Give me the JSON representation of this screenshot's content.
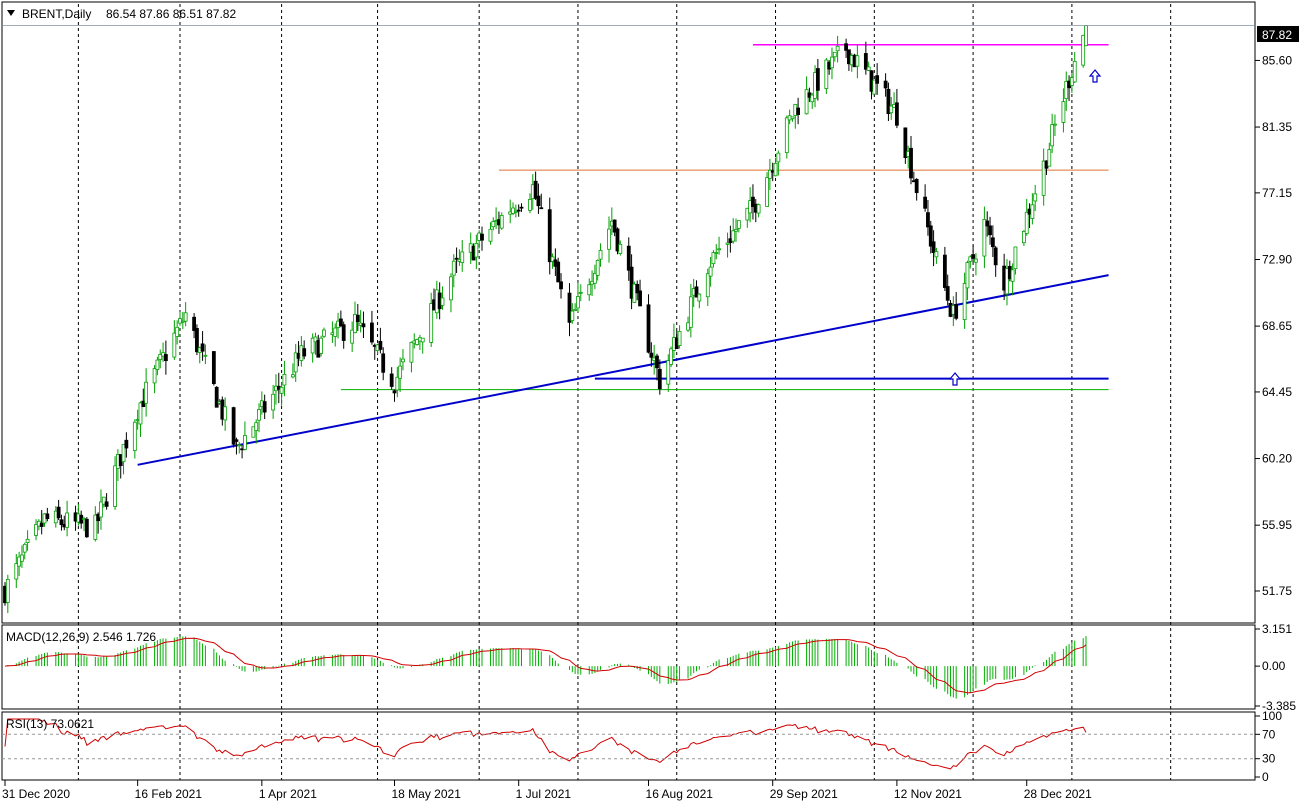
{
  "header": {
    "symbol_label": "BRENT,Daily",
    "ohlc": "86.54 87.86 86.51 87.82"
  },
  "price_panel": {
    "current_price_label": "87.82",
    "y_ticks": [
      "85.60",
      "81.35",
      "77.15",
      "72.90",
      "68.65",
      "64.45",
      "60.20",
      "55.95",
      "51.75"
    ]
  },
  "macd_panel": {
    "label": "MACD(12,26,9) 2.546 1.726",
    "y_ticks": [
      "3.151",
      "0.00",
      "-3.385"
    ]
  },
  "rsi_panel": {
    "label": "RSI(13) 73.0621",
    "y_ticks": [
      "100",
      "70",
      "30",
      "0"
    ]
  },
  "x_axis": {
    "labels": [
      "31 Dec 2020",
      "16 Feb 2021",
      "1 Apr 2021",
      "18 May 2021",
      "1 Jul 2021",
      "16 Aug 2021",
      "29 Sep 2021",
      "12 Nov 2021",
      "28 Dec 2021"
    ]
  },
  "colors": {
    "bull_candle": "#00a000",
    "bear_candle": "#000000",
    "resistance_line": "#ff00ff",
    "support_line": "#0000cc",
    "mid_level_line": "#e07030",
    "low_level_line": "#00b000",
    "macd_histogram": "#00b000",
    "macd_signal": "#d00000",
    "rsi_line": "#d00000",
    "arrow": "#0000cc"
  },
  "chart_data": {
    "type": "candlestick",
    "title": "BRENT,Daily",
    "x_range": [
      "2020-12-31",
      "2022-01-06"
    ],
    "y_range": [
      49.9,
      89.2
    ],
    "price_keypoints": [
      {
        "date": "2020-12-31",
        "close": 51.8
      },
      {
        "date": "2021-01-14",
        "close": 56.3
      },
      {
        "date": "2021-02-01",
        "close": 55.8
      },
      {
        "date": "2021-02-16",
        "close": 63.4
      },
      {
        "date": "2021-03-05",
        "close": 69.4
      },
      {
        "date": "2021-03-23",
        "close": 60.8
      },
      {
        "date": "2021-04-15",
        "close": 66.8
      },
      {
        "date": "2021-05-04",
        "close": 68.9
      },
      {
        "date": "2021-05-18",
        "close": 65.1
      },
      {
        "date": "2021-06-08",
        "close": 72.2
      },
      {
        "date": "2021-06-28",
        "close": 76.2
      },
      {
        "date": "2021-07-06",
        "close": 77.5
      },
      {
        "date": "2021-07-19",
        "close": 68.6
      },
      {
        "date": "2021-08-03",
        "close": 75.4
      },
      {
        "date": "2021-08-20",
        "close": 65.2
      },
      {
        "date": "2021-09-06",
        "close": 72.6
      },
      {
        "date": "2021-09-22",
        "close": 76.2
      },
      {
        "date": "2021-10-07",
        "close": 82.6
      },
      {
        "date": "2021-10-25",
        "close": 86.4
      },
      {
        "date": "2021-11-12",
        "close": 82.2
      },
      {
        "date": "2021-11-26",
        "close": 72.8
      },
      {
        "date": "2021-12-02",
        "close": 69.3
      },
      {
        "date": "2021-12-13",
        "close": 75.2
      },
      {
        "date": "2021-12-20",
        "close": 71.4
      },
      {
        "date": "2022-01-03",
        "close": 78.9
      },
      {
        "date": "2022-01-12",
        "close": 84.5
      },
      {
        "date": "2022-01-18",
        "close": 87.82
      }
    ],
    "levels": [
      {
        "name": "resistance",
        "value": 86.6,
        "from": "2021-09-22",
        "to": "2022-01-26"
      },
      {
        "name": "mid",
        "value": 78.6,
        "from": "2021-06-24",
        "to": "2022-01-26"
      },
      {
        "name": "support-horizontal",
        "value": 65.3,
        "from": "2021-07-28",
        "to": "2022-01-26"
      },
      {
        "name": "low",
        "value": 64.6,
        "from": "2021-04-29",
        "to": "2022-01-26"
      }
    ],
    "trendline": {
      "from": {
        "date": "2021-02-16",
        "value": 59.8
      },
      "to": {
        "date": "2022-01-26",
        "value": 71.9
      }
    },
    "macd": {
      "latest": 2.546,
      "signal": 1.726,
      "range": [
        -3.385,
        3.151
      ]
    },
    "rsi": {
      "latest": 73.0621,
      "levels": [
        30,
        70
      ],
      "range": [
        0,
        100
      ]
    }
  }
}
